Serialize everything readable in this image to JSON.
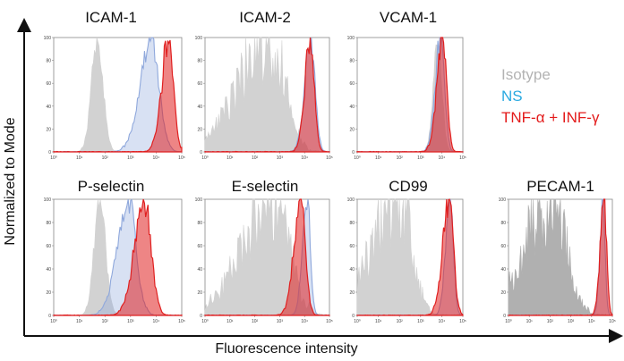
{
  "chart_data": {
    "type": "histogram",
    "ylabel": "Normalized to Mode",
    "xlabel": "Fluorescence intensity",
    "x_scale": "log",
    "xlim": [
      1,
      100000
    ],
    "ylim": [
      0,
      100
    ],
    "x_tick_labels": [
      "10⁰",
      "10¹",
      "10²",
      "10³",
      "10⁴",
      "10⁵"
    ],
    "y_tick_labels": [
      "0",
      "20",
      "40",
      "60",
      "80",
      "100"
    ],
    "legend": [
      {
        "name": "Isotype",
        "color": "#b3b3b3"
      },
      {
        "name": "NS",
        "color": "#29a9e0"
      },
      {
        "name": "TNF-α + INF-γ",
        "color": "#e31b1b"
      }
    ],
    "series_colors": {
      "isotype": "#d2d2d2",
      "isotype_dark": "#b0b0b0",
      "ns": "#8fa8dc",
      "tnf": "#e02020"
    },
    "panels": [
      {
        "title": "ICAM-1",
        "peaks_log10": {
          "isotype": 1.7,
          "ns": 3.8,
          "tnf": 4.5
        },
        "widths": {
          "isotype": 0.22,
          "ns": 0.3,
          "tnf": 0.18
        }
      },
      {
        "title": "ICAM-2",
        "peaks_log10": {
          "isotype": 2.6,
          "ns": 4.25,
          "tnf": 4.25
        },
        "widths": {
          "isotype": 0.55,
          "ns": 0.17,
          "tnf": 0.15
        }
      },
      {
        "title": "VCAM-1",
        "peaks_log10": {
          "isotype": 3.8,
          "ns": 3.95,
          "tnf": 4.05
        },
        "widths": {
          "isotype": 0.2,
          "ns": 0.18,
          "tnf": 0.18
        }
      },
      {
        "title": "P-selectin",
        "peaks_log10": {
          "isotype": 1.8,
          "ns": 2.9,
          "tnf": 3.55
        },
        "widths": {
          "isotype": 0.22,
          "ns": 0.3,
          "tnf": 0.25
        }
      },
      {
        "title": "E-selectin",
        "peaks_log10": {
          "isotype": 2.8,
          "ns": 4.1,
          "tnf": 3.85
        },
        "widths": {
          "isotype": 0.55,
          "ns": 0.13,
          "tnf": 0.18
        }
      },
      {
        "title": "CD99",
        "peaks_log10": {
          "isotype": 2.0,
          "ns": 4.4,
          "tnf": 4.35
        },
        "widths": {
          "isotype": 0.55,
          "ns": 0.15,
          "tnf": 0.2
        }
      },
      {
        "title": "PECAM-1",
        "peaks_log10": {
          "isotype": 2.2,
          "ns": 4.55,
          "tnf": 4.6
        },
        "widths": {
          "isotype": 0.6,
          "ns": 0.1,
          "tnf": 0.12
        }
      }
    ]
  }
}
